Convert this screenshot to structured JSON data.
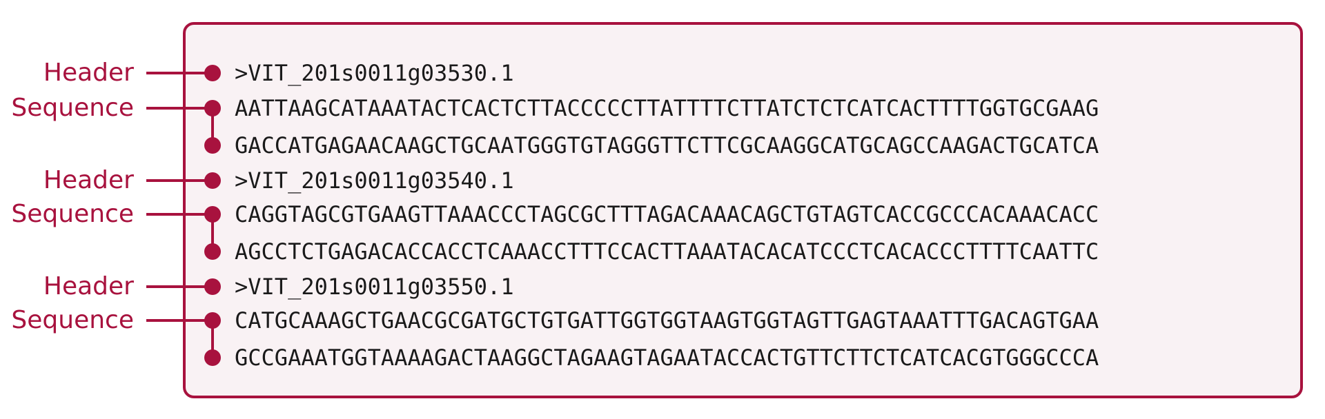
{
  "colors": {
    "accent": "#a8123e",
    "box_background": "#f9f2f4",
    "text": "#1a1a1a"
  },
  "labels": {
    "header": "Header",
    "sequence": "Sequence"
  },
  "records": [
    {
      "header": ">VIT_201s0011g03530.1",
      "sequence": [
        "AATTAAGCATAAATACTCACTCTTACCCCCTTATTTTCTTATCTCTCATCACTTTTGGTGCGAAG",
        "GACCATGAGAACAAGCTGCAATGGGTGTAGGGTTCTTCGCAAGGCATGCAGCCAAGACTGCATCA"
      ]
    },
    {
      "header": ">VIT_201s0011g03540.1",
      "sequence": [
        "CAGGTAGCGTGAAGTTAAACCCTAGCGCTTTAGACAAACAGCTGTAGTCACCGCCCACAAACACC",
        "AGCCTCTGAGACACCACCTCAAACCTTTCCACTTAAATACACATCCCTCACACCCTTTTCAATTC"
      ]
    },
    {
      "header": ">VIT_201s0011g03550.1",
      "sequence": [
        "CATGCAAAGCTGAACGCGATGCTGTGATTGGTGGTAAGTGGTAGTTGAGTAAATTTGACAGTGAA",
        "GCCGAAATGGTAAAAGACTAAGGCTAGAAGTAGAATACCACTGTTCTTCTCATCACGTGGGCCCA"
      ]
    }
  ]
}
